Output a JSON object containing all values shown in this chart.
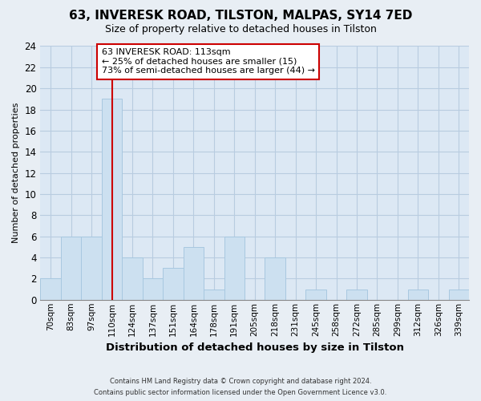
{
  "title": "63, INVERESK ROAD, TILSTON, MALPAS, SY14 7ED",
  "subtitle": "Size of property relative to detached houses in Tilston",
  "xlabel": "Distribution of detached houses by size in Tilston",
  "ylabel": "Number of detached properties",
  "bin_labels": [
    "70sqm",
    "83sqm",
    "97sqm",
    "110sqm",
    "124sqm",
    "137sqm",
    "151sqm",
    "164sqm",
    "178sqm",
    "191sqm",
    "205sqm",
    "218sqm",
    "231sqm",
    "245sqm",
    "258sqm",
    "272sqm",
    "285sqm",
    "299sqm",
    "312sqm",
    "326sqm",
    "339sqm"
  ],
  "bar_values": [
    2,
    6,
    6,
    19,
    4,
    2,
    3,
    5,
    1,
    6,
    0,
    4,
    0,
    1,
    0,
    1,
    0,
    0,
    1,
    0,
    1
  ],
  "bar_color": "#cce0f0",
  "bar_edge_color": "#a8c8e0",
  "reference_line_index": 3,
  "reference_line_color": "#cc0000",
  "annotation_line1": "63 INVERESK ROAD: 113sqm",
  "annotation_line2": "← 25% of detached houses are smaller (15)",
  "annotation_line3": "73% of semi-detached houses are larger (44) →",
  "annotation_box_color": "#ffffff",
  "annotation_box_edge": "#cc0000",
  "ylim": [
    0,
    24
  ],
  "yticks": [
    0,
    2,
    4,
    6,
    8,
    10,
    12,
    14,
    16,
    18,
    20,
    22,
    24
  ],
  "footer_line1": "Contains HM Land Registry data © Crown copyright and database right 2024.",
  "footer_line2": "Contains public sector information licensed under the Open Government Licence v3.0.",
  "bg_color": "#e8eef4",
  "plot_bg_color": "#dce8f4",
  "grid_color": "#b8cce0"
}
